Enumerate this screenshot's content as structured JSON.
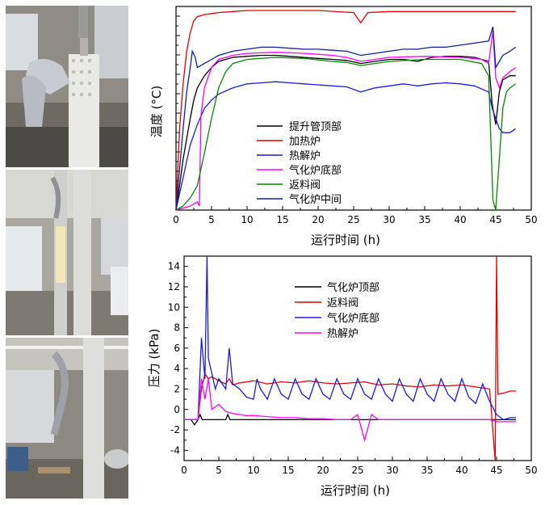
{
  "chart_data": [
    {
      "type": "line",
      "title": "",
      "xlabel": "运行时间 (h)",
      "ylabel": "温度 (°C)",
      "xlim": [
        0,
        50
      ],
      "x_ticks": [
        "0",
        "5",
        "10",
        "15",
        "20",
        "25",
        "30",
        "35",
        "40",
        "45",
        "50"
      ],
      "y_tick_labels_shown": false,
      "legend": "center-left",
      "series": [
        {
          "name": "提升管顶部",
          "color": "#000000",
          "x": [
            0,
            0.5,
            1,
            1.5,
            2,
            2.5,
            3,
            4,
            5,
            6,
            7,
            8,
            10,
            12,
            14,
            16,
            18,
            20,
            22,
            24,
            26,
            28,
            30,
            32,
            34,
            36,
            38,
            40,
            42,
            44,
            44.5,
            45,
            45.5,
            46,
            47,
            47.8
          ],
          "y": [
            0,
            12,
            25,
            35,
            45,
            54,
            60,
            66,
            70,
            73,
            74,
            75,
            75.5,
            76,
            76,
            75.5,
            75,
            74.5,
            74,
            73.5,
            72,
            73,
            74,
            74,
            73,
            75,
            75.5,
            75.5,
            75,
            73,
            52,
            42,
            58,
            64,
            66,
            66
          ]
        },
        {
          "name": "加热炉",
          "color": "#e00000",
          "x": [
            0,
            0.5,
            1,
            1.5,
            2,
            2.5,
            3,
            4,
            5,
            6,
            8,
            10,
            15,
            20,
            25,
            26,
            27,
            30,
            35,
            40,
            45,
            47.8
          ],
          "y": [
            0,
            40,
            62,
            78,
            87,
            93,
            95,
            96,
            96.5,
            97,
            97.5,
            98,
            98,
            98,
            97,
            92,
            97,
            97.5,
            97.5,
            97.5,
            97.5,
            97.5
          ]
        },
        {
          "name": "热解炉",
          "color": "#1a1ae0",
          "x": [
            0,
            0.5,
            1,
            1.5,
            2,
            3,
            4,
            5,
            6,
            8,
            10,
            12,
            14,
            16,
            18,
            20,
            22,
            24,
            26,
            28,
            30,
            32,
            34,
            36,
            38,
            40,
            42,
            44,
            44.5,
            45,
            45.5,
            46,
            47,
            47.8
          ],
          "y": [
            0,
            8,
            16,
            24,
            32,
            42,
            50,
            54,
            57,
            60,
            62,
            62.5,
            63,
            62.5,
            62,
            61.5,
            61,
            60.5,
            58,
            60,
            61,
            62,
            61,
            62,
            62.5,
            62,
            61,
            58,
            50,
            45,
            40,
            38,
            38,
            40
          ]
        },
        {
          "name": "气化炉底部",
          "color": "#ff00ff",
          "x": [
            0,
            2,
            3,
            3.3,
            3.5,
            4,
            5,
            6,
            8,
            10,
            14,
            18,
            22,
            24,
            26,
            28,
            30,
            35,
            40,
            43,
            44,
            44.6,
            45,
            45.5,
            46,
            47,
            47.8
          ],
          "y": [
            0,
            2,
            4,
            2,
            46,
            60,
            70,
            74,
            76,
            77,
            77.5,
            77,
            76,
            75,
            73,
            74,
            75,
            75.5,
            75,
            74,
            72,
            88,
            65,
            60,
            65,
            68,
            70
          ]
        },
        {
          "name": "返料阀",
          "color": "#008800",
          "x": [
            0,
            0.5,
            1,
            1.5,
            2,
            3,
            4,
            5,
            6,
            7,
            8,
            10,
            14,
            18,
            22,
            24,
            26,
            28,
            30,
            35,
            40,
            43,
            44,
            44.6,
            45,
            45.5,
            46,
            46.5,
            47,
            47.8
          ],
          "y": [
            0,
            1,
            2,
            4,
            6,
            12,
            28,
            45,
            60,
            68,
            72,
            74,
            75,
            74.5,
            73,
            72.5,
            71,
            72,
            73,
            74,
            74,
            72,
            66,
            5,
            0,
            25,
            50,
            58,
            60,
            62
          ]
        },
        {
          "name": "气化炉中间",
          "color": "#102090",
          "x": [
            0,
            0.5,
            1,
            1.5,
            2,
            2.3,
            2.7,
            3,
            4,
            5,
            6,
            8,
            10,
            12,
            14,
            16,
            18,
            20,
            22,
            24,
            26,
            28,
            30,
            32,
            34,
            36,
            38,
            40,
            42,
            44,
            44.6,
            45,
            45.5,
            46,
            47,
            47.8
          ],
          "y": [
            0,
            20,
            40,
            58,
            70,
            78,
            75,
            70,
            72,
            74,
            76,
            78,
            79,
            80,
            80,
            79.5,
            79,
            79,
            78.5,
            78,
            76,
            77,
            78,
            79,
            79,
            80,
            80,
            81,
            82,
            83,
            90,
            70,
            73,
            76,
            78,
            80
          ]
        }
      ]
    },
    {
      "type": "line",
      "title": "",
      "xlabel": "运行时间 (h)",
      "ylabel": "压力 (kPa)",
      "xlim": [
        0,
        50
      ],
      "ylim": [
        -5,
        15
      ],
      "x_ticks": [
        "0",
        "5",
        "10",
        "15",
        "20",
        "25",
        "30",
        "35",
        "40",
        "45",
        "50"
      ],
      "y_ticks": [
        "-4",
        "-2",
        "0",
        "2",
        "4",
        "6",
        "8",
        "10",
        "12",
        "14"
      ],
      "legend": "top-center",
      "series": [
        {
          "name": "气化炉顶部",
          "color": "#000000",
          "x": [
            0,
            1,
            1.5,
            2,
            2.3,
            2.6,
            3,
            4,
            5,
            6,
            6.3,
            6.6,
            7,
            8,
            10,
            20,
            30,
            40,
            47.8
          ],
          "y": [
            -1,
            -1,
            -1.5,
            -1,
            -0.5,
            -1,
            -1,
            -1,
            -1,
            -1,
            -0.5,
            -1,
            -1,
            -1,
            -1,
            -1,
            -1,
            -1,
            -1
          ]
        },
        {
          "name": "返料阀",
          "color": "#e00000",
          "x": [
            0,
            2,
            2.5,
            3,
            3.5,
            4,
            5,
            6,
            6.5,
            7,
            8,
            10,
            12,
            14,
            16,
            18,
            20,
            22,
            24,
            26,
            28,
            30,
            32,
            34,
            36,
            38,
            40,
            42,
            44,
            44.8,
            45,
            45.2,
            46,
            47,
            47.8
          ],
          "y": [
            -1,
            -1,
            2,
            3.5,
            3,
            3.2,
            2.8,
            2.5,
            3,
            2.4,
            2.6,
            2.8,
            2.5,
            2.7,
            2.6,
            2.8,
            2.6,
            2.5,
            2.6,
            2.7,
            2.4,
            2.5,
            2.3,
            2.2,
            2.4,
            2.3,
            2.4,
            2.2,
            2.0,
            -5,
            15,
            1.5,
            1.6,
            1.8,
            1.8
          ]
        },
        {
          "name": "气化炉底部",
          "color": "#1a1ae0",
          "x": [
            0,
            2,
            2.5,
            3,
            3.3,
            3.5,
            4,
            4.5,
            5,
            6,
            6.5,
            7,
            8,
            9,
            10,
            10.5,
            11,
            12,
            13,
            14,
            15,
            16,
            17,
            18,
            19,
            20,
            21,
            22,
            23,
            24,
            25,
            26,
            27,
            28,
            29,
            30,
            31,
            32,
            33,
            34,
            35,
            36,
            37,
            38,
            39,
            40,
            41,
            42,
            43,
            44,
            45,
            46,
            47,
            47.8
          ],
          "y": [
            -1,
            -1,
            7,
            3,
            15,
            5,
            3.5,
            2,
            3,
            2,
            6,
            2.5,
            2,
            1.2,
            1,
            3,
            2,
            1,
            3,
            1.5,
            1,
            3,
            1.5,
            1,
            3,
            1.5,
            1,
            3,
            1.5,
            1,
            3,
            1.5,
            1,
            3,
            1.5,
            0.8,
            3,
            1.5,
            0.8,
            3,
            1.5,
            0.8,
            3,
            1.5,
            0.8,
            3,
            1.2,
            0.6,
            2.5,
            0.8,
            -0.5,
            -1,
            -0.8,
            -0.8
          ]
        },
        {
          "name": "热解炉",
          "color": "#ff00ff",
          "x": [
            0,
            2,
            2.5,
            3,
            3.5,
            4,
            5,
            6,
            7,
            8,
            9,
            10,
            12,
            14,
            16,
            18,
            20,
            22,
            24,
            25,
            26,
            27,
            28,
            30,
            32,
            34,
            36,
            38,
            40,
            42,
            44,
            45,
            46,
            47,
            47.8
          ],
          "y": [
            -1,
            -1,
            3,
            1,
            3,
            0,
            0.5,
            -0.2,
            -0.4,
            -0.5,
            -0.6,
            -0.6,
            -0.7,
            -0.8,
            -0.8,
            -0.9,
            -0.9,
            -1,
            -1,
            -0.5,
            -3,
            -0.5,
            -1,
            -1,
            -1,
            -1,
            -1,
            -1,
            -1,
            -1,
            -1,
            -1.2,
            -1.2,
            -1.2,
            -1.2
          ]
        }
      ]
    }
  ]
}
